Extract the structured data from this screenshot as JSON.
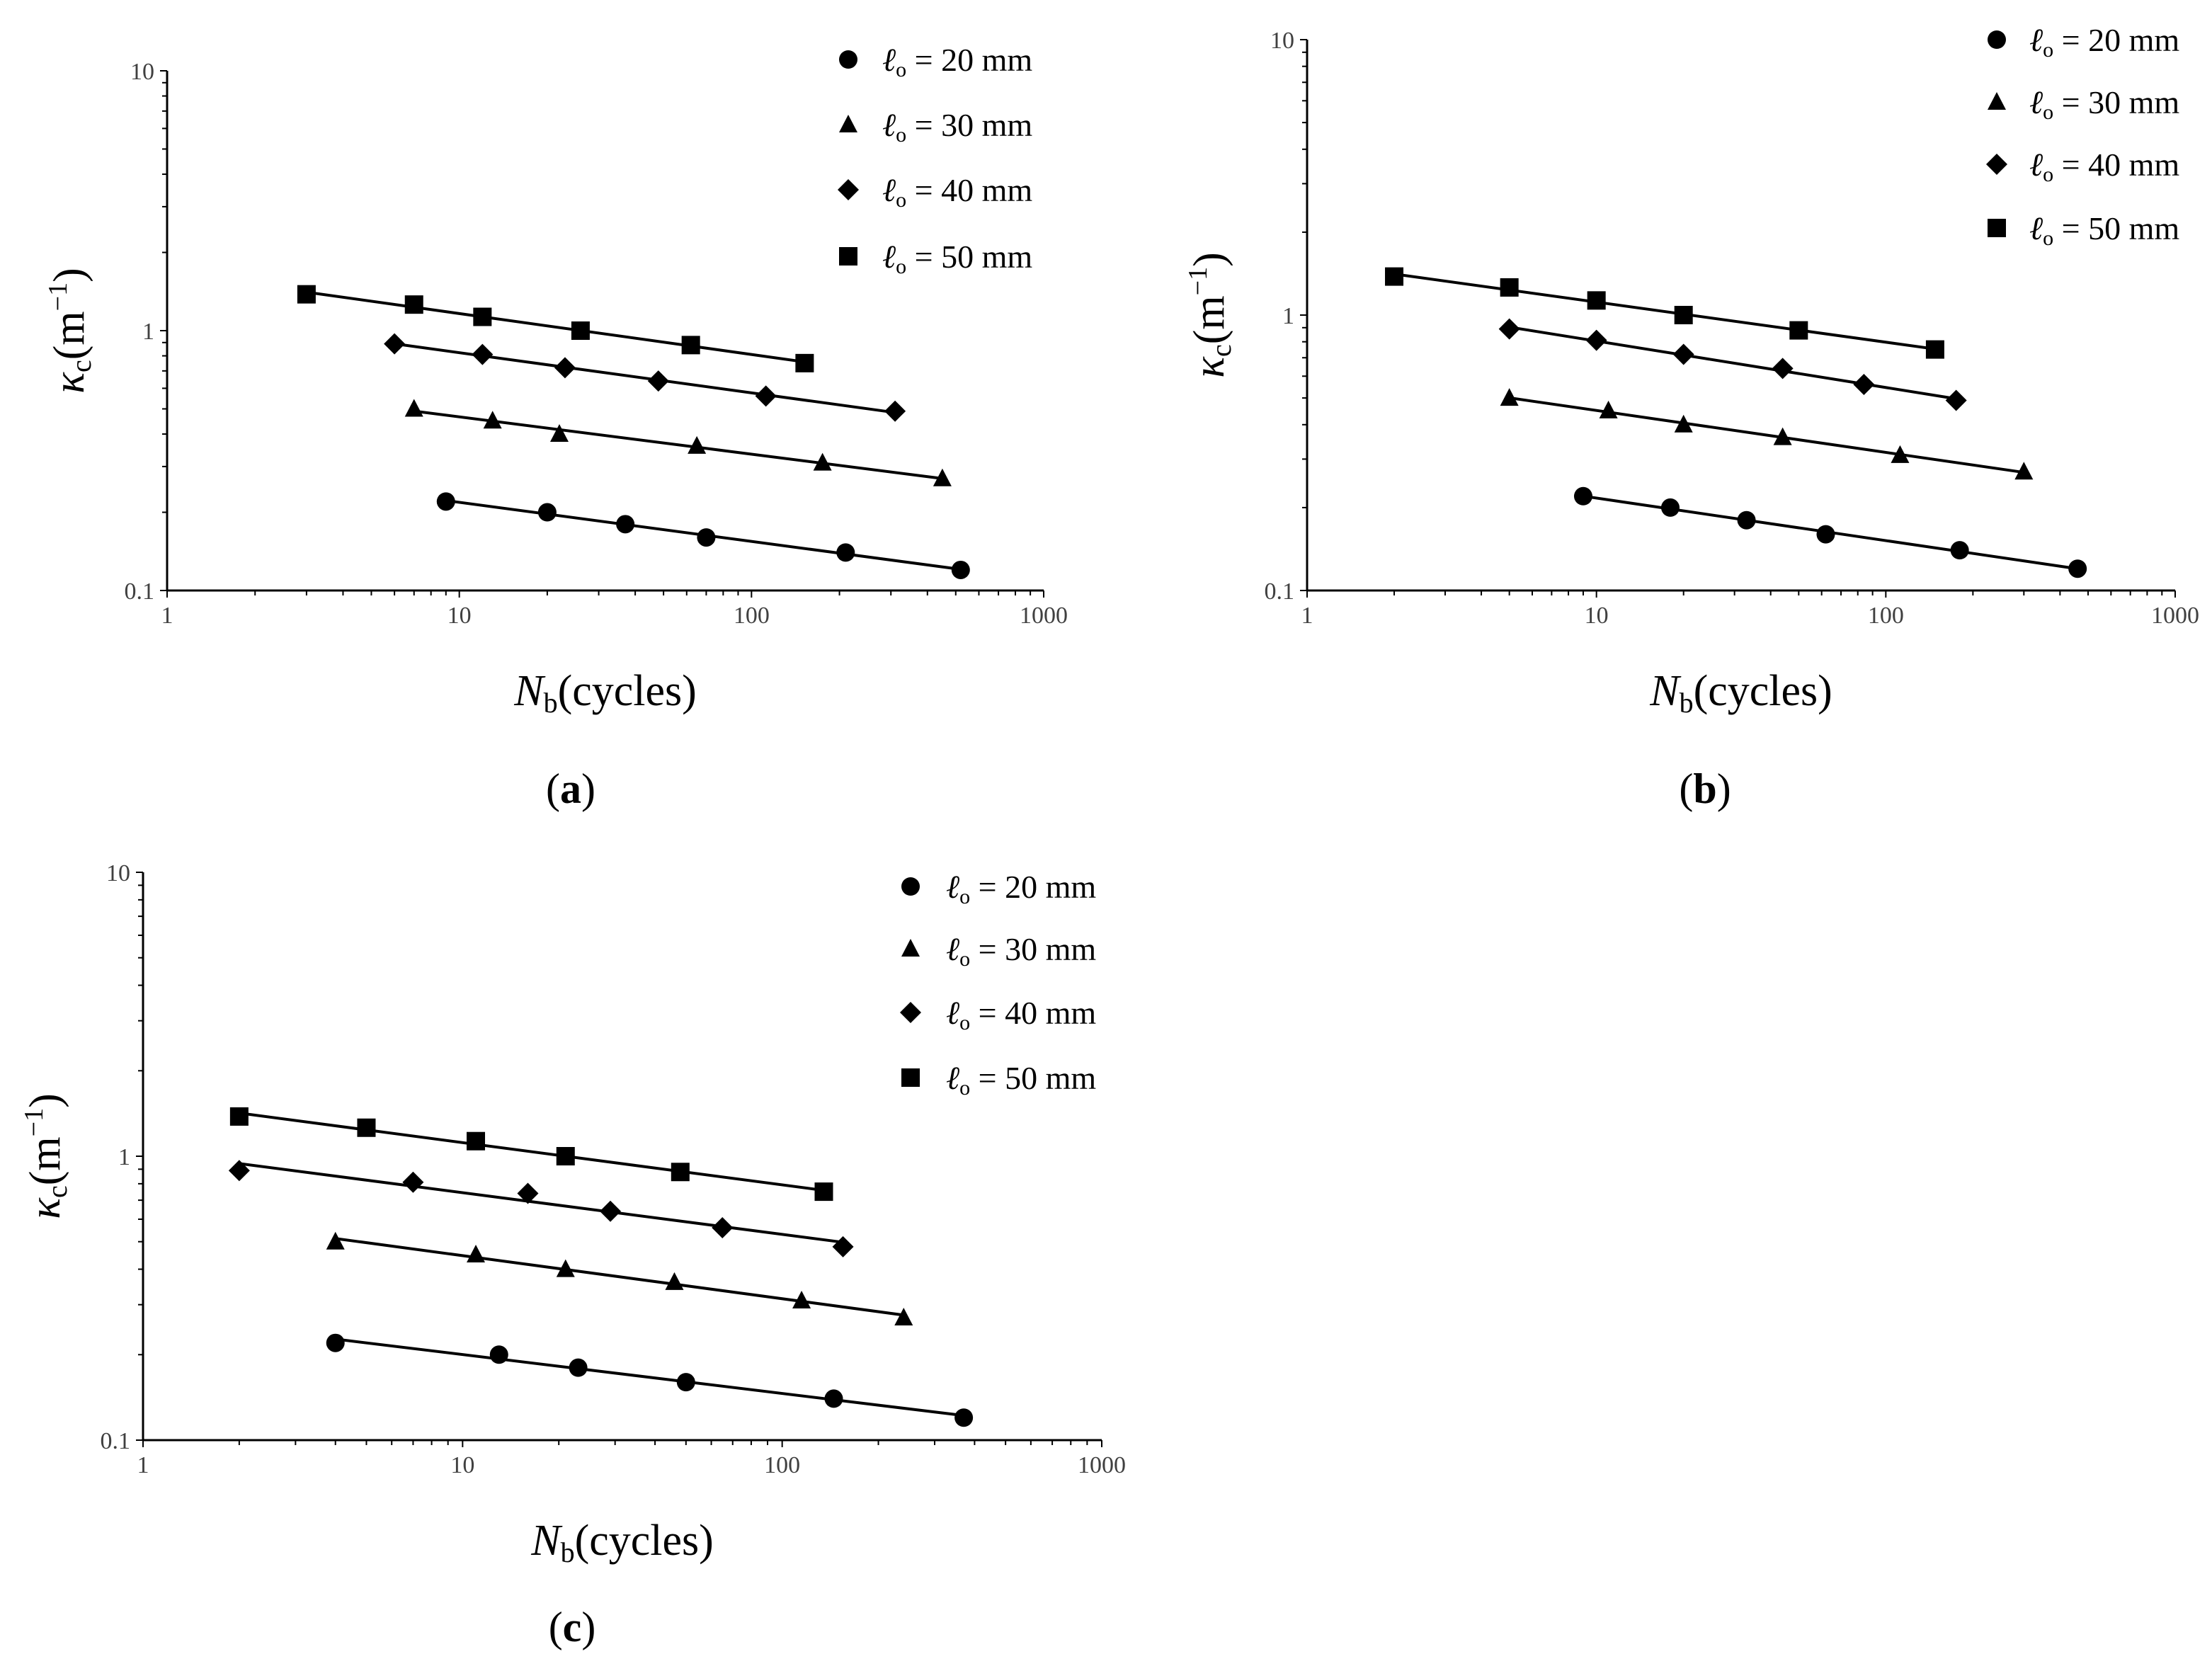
{
  "figure": {
    "legend_symbol": "ℓ",
    "legend_subscript": "o",
    "legend_units": "mm"
  },
  "chart_data": [
    {
      "type": "scatter",
      "panel_label": "(a)",
      "panel_letter": "a",
      "xlabel": "N",
      "xlabel_sub": "b",
      "xlabel_rest": "(cycles)",
      "ylabel": "κ",
      "ylabel_sub": "c",
      "ylabel_rest": "(m",
      "ylabel_sup": "−1",
      "ylabel_close": ")",
      "xscale": "log",
      "yscale": "log",
      "xlim": [
        1,
        1000
      ],
      "ylim": [
        0.1,
        10
      ],
      "xticks": [
        "1",
        "10",
        "100",
        "1000"
      ],
      "yticks": [
        "0.1",
        "1",
        "10"
      ],
      "legend_position": "top-right",
      "series": [
        {
          "name": "ℓo = 20 mm",
          "value": "20",
          "marker": "circle",
          "x": [
            9,
            20,
            37,
            70,
            210,
            520
          ],
          "y": [
            0.22,
            0.2,
            0.18,
            0.16,
            0.14,
            0.12
          ]
        },
        {
          "name": "ℓo = 30 mm",
          "value": "30",
          "marker": "triangle",
          "x": [
            7,
            13,
            22,
            65,
            175,
            450
          ],
          "y": [
            0.5,
            0.45,
            0.4,
            0.36,
            0.31,
            0.27
          ]
        },
        {
          "name": "ℓo = 40 mm",
          "value": "40",
          "marker": "diamond",
          "x": [
            6,
            12,
            23,
            48,
            112,
            310
          ],
          "y": [
            0.89,
            0.81,
            0.72,
            0.64,
            0.56,
            0.49
          ]
        },
        {
          "name": "ℓo = 50 mm",
          "value": "50",
          "marker": "square",
          "x": [
            3,
            7,
            12,
            26,
            62,
            152
          ],
          "y": [
            1.38,
            1.26,
            1.13,
            1.0,
            0.88,
            0.75
          ]
        }
      ]
    },
    {
      "type": "scatter",
      "panel_label": "(b)",
      "panel_letter": "b",
      "xlabel": "N",
      "xlabel_sub": "b",
      "xlabel_rest": "(cycles)",
      "ylabel": "κ",
      "ylabel_sub": "c",
      "ylabel_rest": "(m",
      "ylabel_sup": "−1",
      "ylabel_close": ")",
      "xscale": "log",
      "yscale": "log",
      "xlim": [
        1,
        1000
      ],
      "ylim": [
        0.1,
        10
      ],
      "xticks": [
        "1",
        "10",
        "100",
        "1000"
      ],
      "yticks": [
        "0.1",
        "1",
        "10"
      ],
      "legend_position": "top-right",
      "series": [
        {
          "name": "ℓo = 20 mm",
          "value": "20",
          "marker": "circle",
          "x": [
            9,
            18,
            33,
            62,
            180,
            460
          ],
          "y": [
            0.22,
            0.2,
            0.18,
            0.16,
            0.14,
            0.12
          ]
        },
        {
          "name": "ℓo = 30 mm",
          "value": "30",
          "marker": "triangle",
          "x": [
            5,
            11,
            20,
            44,
            112,
            300
          ],
          "y": [
            0.5,
            0.45,
            0.4,
            0.36,
            0.31,
            0.27
          ]
        },
        {
          "name": "ℓo = 40 mm",
          "value": "40",
          "marker": "diamond",
          "x": [
            5,
            10,
            20,
            44,
            84,
            175
          ],
          "y": [
            0.89,
            0.81,
            0.72,
            0.64,
            0.56,
            0.49
          ]
        },
        {
          "name": "ℓo = 50 mm",
          "value": "50",
          "marker": "square",
          "x": [
            2,
            5,
            10,
            20,
            50,
            148
          ],
          "y": [
            1.38,
            1.26,
            1.13,
            1.0,
            0.88,
            0.75
          ]
        }
      ]
    },
    {
      "type": "scatter",
      "panel_label": "(c)",
      "panel_letter": "c",
      "xlabel": "N",
      "xlabel_sub": "b",
      "xlabel_rest": "(cycles)",
      "ylabel": "κ",
      "ylabel_sub": "c",
      "ylabel_rest": "(m",
      "ylabel_sup": "−1",
      "ylabel_close": ")",
      "xscale": "log",
      "yscale": "log",
      "xlim": [
        1,
        1000
      ],
      "ylim": [
        0.1,
        10
      ],
      "xticks": [
        "1",
        "10",
        "100",
        "1000"
      ],
      "yticks": [
        "0.1",
        "1",
        "10"
      ],
      "legend_position": "top-right",
      "series": [
        {
          "name": "ℓo = 20 mm",
          "value": "20",
          "marker": "circle",
          "x": [
            4,
            13,
            23,
            50,
            145,
            370
          ],
          "y": [
            0.22,
            0.2,
            0.18,
            0.16,
            0.14,
            0.12
          ]
        },
        {
          "name": "ℓo = 30 mm",
          "value": "30",
          "marker": "triangle",
          "x": [
            4,
            11,
            21,
            46,
            115,
            240
          ],
          "y": [
            0.5,
            0.45,
            0.4,
            0.36,
            0.31,
            0.27
          ]
        },
        {
          "name": "ℓo = 40 mm",
          "value": "40",
          "marker": "diamond",
          "x": [
            2,
            7,
            16,
            29,
            65,
            155
          ],
          "y": [
            0.89,
            0.81,
            0.74,
            0.64,
            0.56,
            0.48
          ]
        },
        {
          "name": "ℓo = 50 mm",
          "value": "50",
          "marker": "square",
          "x": [
            2,
            5,
            11,
            21,
            48,
            135
          ],
          "y": [
            1.38,
            1.26,
            1.13,
            1.0,
            0.88,
            0.75
          ]
        }
      ]
    }
  ]
}
